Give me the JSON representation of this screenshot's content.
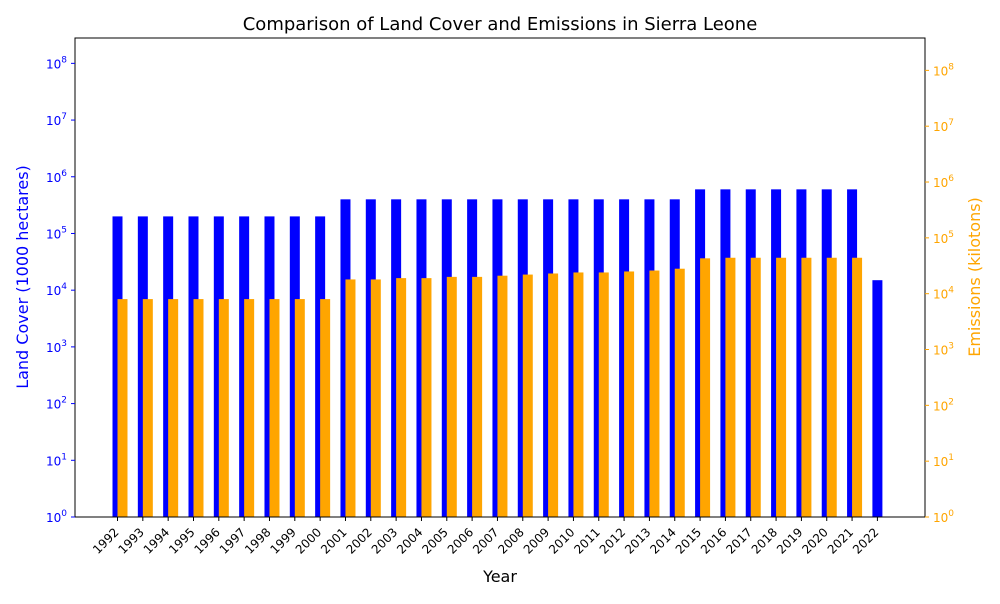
{
  "chart_data": {
    "type": "bar",
    "title": "Comparison of Land Cover and Emissions in Sierra Leone",
    "xlabel": "Year",
    "ylabel_left": "Land Cover (1000 hectares)",
    "ylabel_right": "Emissions (kilotons)",
    "y_scale": "log",
    "ylim_left": [
      1,
      280000000
    ],
    "ylim_right": [
      1,
      380000000
    ],
    "left_ticks": [
      "10^0",
      "10^1",
      "10^2",
      "10^3",
      "10^4",
      "10^5",
      "10^6",
      "10^7",
      "10^8"
    ],
    "right_ticks": [
      "10^0",
      "10^1",
      "10^2",
      "10^3",
      "10^4",
      "10^5",
      "10^6",
      "10^7",
      "10^8"
    ],
    "categories": [
      "1992",
      "1993",
      "1994",
      "1995",
      "1996",
      "1997",
      "1998",
      "1999",
      "2000",
      "2001",
      "2002",
      "2003",
      "2004",
      "2005",
      "2006",
      "2007",
      "2008",
      "2009",
      "2010",
      "2011",
      "2012",
      "2013",
      "2014",
      "2015",
      "2016",
      "2017",
      "2018",
      "2019",
      "2020",
      "2021",
      "2022"
    ],
    "series": [
      {
        "axis": "left",
        "color": "#0000ff",
        "values": [
          200000,
          200000,
          200000,
          200000,
          200000,
          200000,
          200000,
          200000,
          200000,
          400000,
          400000,
          400000,
          400000,
          400000,
          400000,
          400000,
          400000,
          400000,
          400000,
          400000,
          400000,
          400000,
          400000,
          600000,
          600000,
          600000,
          600000,
          600000,
          600000,
          600000,
          15000
        ]
      },
      {
        "axis": "right",
        "color": "#ffa500",
        "values": [
          8000,
          8000,
          8000,
          8000,
          8000,
          8000,
          8000,
          8000,
          8000,
          18000,
          18000,
          19000,
          19000,
          20000,
          20000,
          21000,
          22000,
          23000,
          24000,
          24000,
          25000,
          26000,
          28000,
          43000,
          44000,
          44000,
          44000,
          44000,
          44000,
          44000,
          null
        ]
      }
    ],
    "grid": false,
    "legend": "none"
  }
}
